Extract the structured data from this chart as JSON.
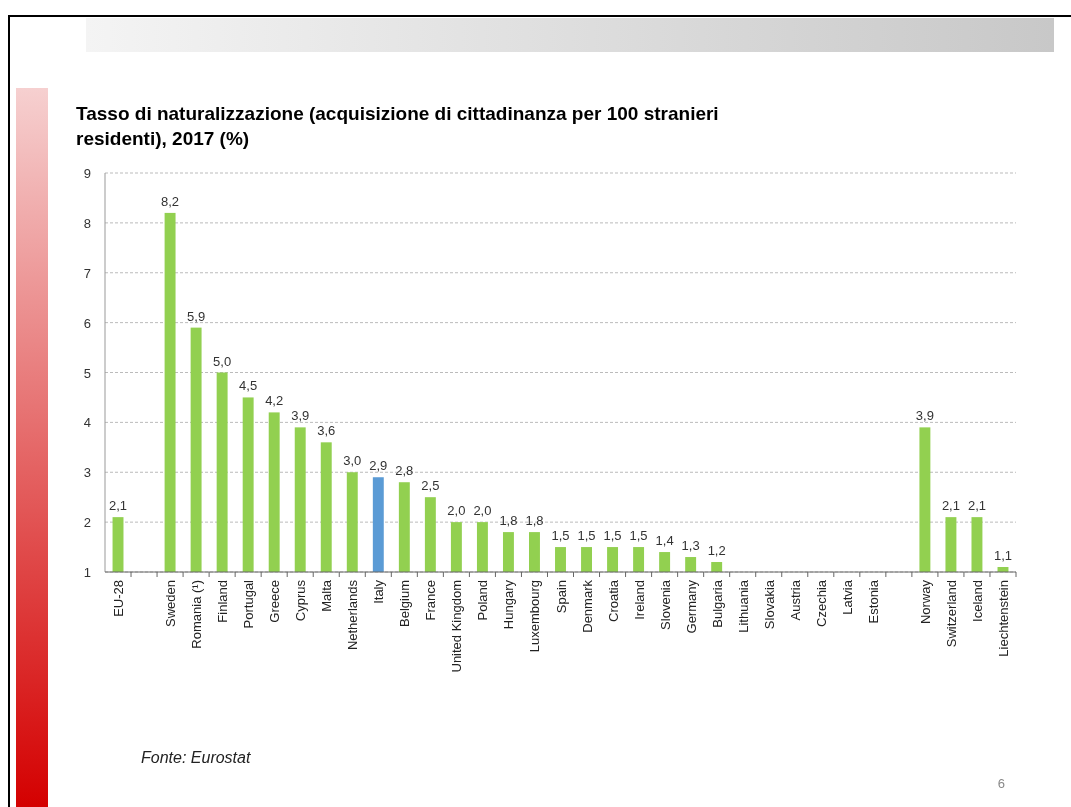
{
  "chart_data": {
    "type": "bar",
    "title": "Tasso di naturalizzazione (acquisizione di cittadinanza per 100 stranieri residenti), 2017 (%)",
    "categories": [
      "EU-28",
      null,
      "Sweden",
      "Romania (¹)",
      "Finland",
      "Portugal",
      "Greece",
      "Cyprus",
      "Malta",
      "Netherlands",
      "Italy",
      "Belgium",
      "France",
      "United Kingdom",
      "Poland",
      "Hungary",
      "Luxembourg",
      "Spain",
      "Denmark",
      "Croatia",
      "Ireland",
      "Slovenia",
      "Germany",
      "Bulgaria",
      "Lithuania",
      "Slovakia",
      "Austria",
      "Czechia",
      "Latvia",
      "Estonia",
      null,
      "Norway",
      "Switzerland",
      "Iceland",
      "Liechtenstein"
    ],
    "values": [
      2.1,
      null,
      8.2,
      5.9,
      5.0,
      4.5,
      4.2,
      3.9,
      3.6,
      3.0,
      2.9,
      2.8,
      2.5,
      2.0,
      2.0,
      1.8,
      1.8,
      1.5,
      1.5,
      1.5,
      1.5,
      1.4,
      1.3,
      1.2,
      null,
      null,
      null,
      null,
      null,
      null,
      null,
      3.9,
      2.1,
      2.1,
      1.1
    ],
    "value_labels": [
      "2,1",
      null,
      "8,2",
      "5,9",
      "5,0",
      "4,5",
      "4,2",
      "3,9",
      "3,6",
      "3,0",
      "2,9",
      "2,8",
      "2,5",
      "2,0",
      "2,0",
      "1,8",
      "1,8",
      "1,5",
      "1,5",
      "1,5",
      "1,5",
      "1,4",
      "1,3",
      "1,2",
      null,
      null,
      null,
      null,
      null,
      null,
      null,
      "3,9",
      "2,1",
      "2,1",
      "1,1"
    ],
    "colors": [
      "#92d050",
      null,
      "#92d050",
      "#92d050",
      "#92d050",
      "#92d050",
      "#92d050",
      "#92d050",
      "#92d050",
      "#92d050",
      "#5b9bd5",
      "#92d050",
      "#92d050",
      "#92d050",
      "#92d050",
      "#92d050",
      "#92d050",
      "#92d050",
      "#92d050",
      "#92d050",
      "#92d050",
      "#92d050",
      "#92d050",
      "#92d050",
      null,
      null,
      null,
      null,
      null,
      null,
      null,
      "#92d050",
      "#92d050",
      "#92d050",
      "#92d050"
    ],
    "ylim": [
      1,
      9
    ],
    "yticks": [
      1,
      2,
      3,
      4,
      5,
      6,
      7,
      8,
      9
    ],
    "grid": "y",
    "annotations": [
      "Fonte: Eurostat",
      "6"
    ]
  }
}
